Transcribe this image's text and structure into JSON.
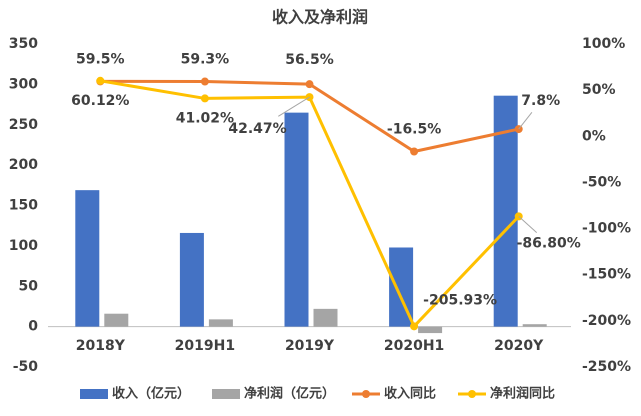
{
  "chart_data": {
    "type": "bar-line",
    "title": "收入及净利润",
    "categories": [
      "2018Y",
      "2019H1",
      "2019Y",
      "2020H1",
      "2020Y"
    ],
    "series": [
      {
        "name": "收入（亿元）",
        "type": "bar",
        "color": "#4472c4",
        "values": [
          169,
          116,
          265,
          98,
          286
        ]
      },
      {
        "name": "净利润（亿元）",
        "type": "bar",
        "color": "#a5a5a5",
        "values": [
          16,
          9,
          22,
          -8,
          3
        ]
      },
      {
        "name": "收入同比",
        "type": "line",
        "axis": "y2",
        "color": "#ed7d31",
        "values": [
          59.5,
          59.3,
          56.5,
          -16.5,
          7.8
        ],
        "value_labels": [
          "59.5%",
          "59.3%",
          "56.5%",
          "-16.5%",
          "7.8%"
        ]
      },
      {
        "name": "净利润同比",
        "type": "line",
        "axis": "y2",
        "color": "#ffc000",
        "values": [
          60.12,
          41.02,
          42.47,
          -205.93,
          -86.8
        ],
        "value_labels": [
          "60.12%",
          "41.02%",
          "42.47%",
          "-205.93%",
          "-86.80%"
        ]
      }
    ],
    "ylim": [
      -50,
      350
    ],
    "yticks": [
      -50,
      0,
      50,
      100,
      150,
      200,
      250,
      300,
      350
    ],
    "y2lim": [
      -250,
      100
    ],
    "y2ticks": [
      {
        "value": -250,
        "label": "-250%"
      },
      {
        "value": -200,
        "label": "-200%"
      },
      {
        "value": -150,
        "label": "-150%"
      },
      {
        "value": -100,
        "label": "-100%"
      },
      {
        "value": -50,
        "label": "-50%"
      },
      {
        "value": 0,
        "label": "0%"
      },
      {
        "value": 50,
        "label": "50%"
      },
      {
        "value": 100,
        "label": "100%"
      }
    ],
    "grid": false,
    "legend": "bottom"
  }
}
